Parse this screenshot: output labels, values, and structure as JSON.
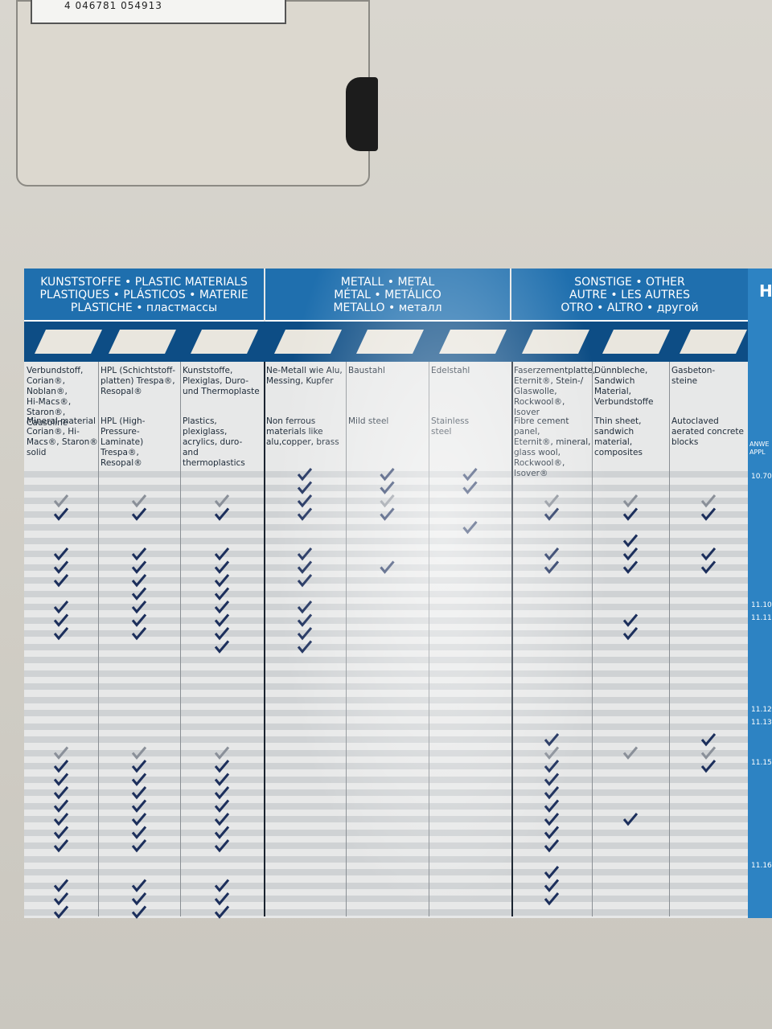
{
  "barcode": "4 046781 054913",
  "groups": [
    {
      "text": "KUNSTSTOFFE • PLASTIC MATERIALS\nPLASTIQUES • PLÁSTICOS • MATERIE\nPLASTICHE • пластмассы"
    },
    {
      "text": "METALL • METAL\nMÉTAL • METÁLICO\nMETALLO • металл"
    },
    {
      "text": "SONSTIGE • OTHER\nAUTRE • LES AUTRES\nOTRO • ALTRO • другой"
    }
  ],
  "columns": [
    {
      "de": "Verbundstoff,\nCorian®, Noblan®,\nHi-Macs®, Staron®,\nCausoline",
      "en": "Mineral material\nCorian®, Hi-Macs®, Staron®\nsolid"
    },
    {
      "de": "HPL (Schichtstoff-\nplatten) Trespa®,\nResopal®",
      "en": "HPL (High-Pressure-\nLaminate) Trespa®,\nResopal®"
    },
    {
      "de": "Kunststoffe,\nPlexiglas, Duro-\nund Thermoplaste",
      "en": "Plastics, plexiglass,\nacrylics, duro- and\nthermoplastics"
    },
    {
      "de": "Ne-Metall wie Alu,\nMessing, Kupfer",
      "en": "Non ferrous\nmaterials like\nalu,copper, brass"
    },
    {
      "de": "Baustahl",
      "en": "Mild steel"
    },
    {
      "de": "Edelstahl",
      "en": "Stainless\nsteel"
    },
    {
      "de": "Faserzementplatte,\nEternit®, Stein-/\nGlaswolle, Rockwool®,\nIsover",
      "en": "Fibre cement panel,\nEternit®, mineral,\nglass wool,\nRockwool®, Isover®"
    },
    {
      "de": "Dünnbleche,\nSandwich Material,\nVerbundstoffe",
      "en": "Thin sheet, sandwich\nmaterial, composites"
    },
    {
      "de": "Gasbeton-\nsteine",
      "en": "Autoclaved\naerated concrete\nblocks"
    }
  ],
  "side": {
    "title": "H",
    "header": "ANWE\nAPPL",
    "codes": [
      "10.70",
      "11.10",
      "11.11",
      "11.12",
      "11.13",
      "11.15",
      "11.16"
    ]
  }
}
